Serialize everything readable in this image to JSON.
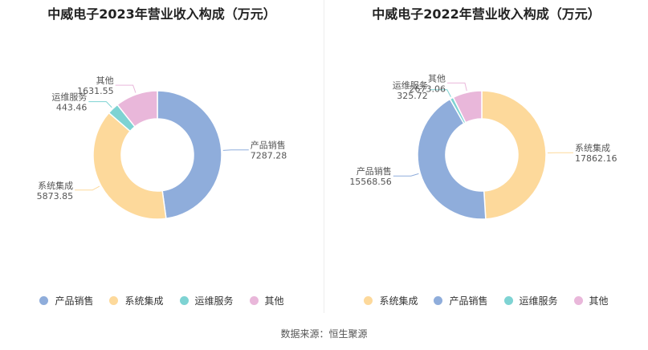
{
  "chart_data": [
    {
      "type": "pie",
      "variant": "donut",
      "title": "中威电子2023年营业收入构成（万元）",
      "series": [
        {
          "name": "产品销售",
          "value": 7287.28,
          "value_label": "7287.28",
          "color": "#8FADDB"
        },
        {
          "name": "系统集成",
          "value": 5873.85,
          "value_label": "5873.85",
          "color": "#FDD99B"
        },
        {
          "name": "运维服务",
          "value": 443.46,
          "value_label": "443.46",
          "color": "#7ED3D3"
        },
        {
          "name": "其他",
          "value": 1631.55,
          "value_label": "1631.55",
          "color": "#E9B7DA"
        }
      ]
    },
    {
      "type": "pie",
      "variant": "donut",
      "title": "中威电子2022年营业收入构成（万元）",
      "series": [
        {
          "name": "系统集成",
          "value": 17862.16,
          "value_label": "17862.16",
          "color": "#FDD99B"
        },
        {
          "name": "产品销售",
          "value": 15568.56,
          "value_label": "15568.56",
          "color": "#8FADDB"
        },
        {
          "name": "运维服务",
          "value": 325.72,
          "value_label": "325.72",
          "color": "#7ED3D3"
        },
        {
          "name": "其他",
          "value": 2673.06,
          "value_label": "2673.06",
          "color": "#E9B7DA"
        }
      ]
    }
  ],
  "source": "数据来源：恒生聚源"
}
